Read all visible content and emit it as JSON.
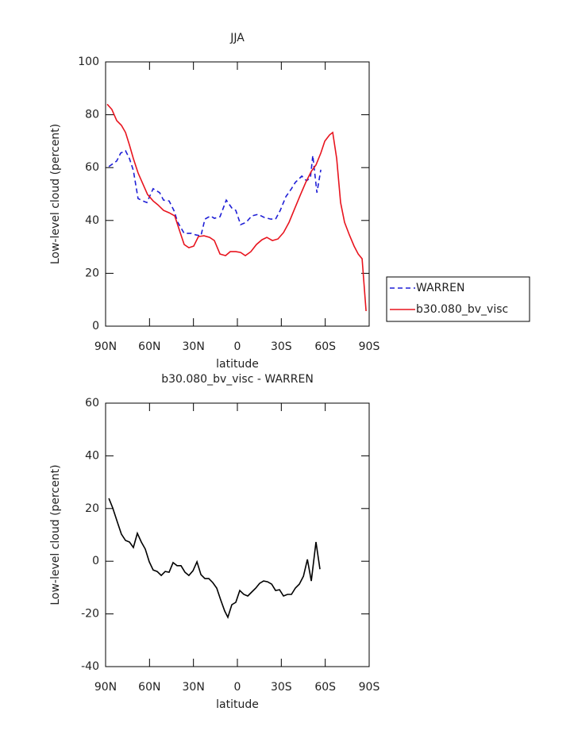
{
  "chart_data": [
    {
      "type": "line",
      "title": "JJA",
      "xlabel": "latitude",
      "ylabel": "Low-level cloud (percent)",
      "xlim": [
        90,
        -90
      ],
      "xticks": [
        {
          "value": 90,
          "label": "90N"
        },
        {
          "value": 60,
          "label": "60N"
        },
        {
          "value": 30,
          "label": "30N"
        },
        0,
        {
          "value": -30,
          "label": "30S"
        },
        {
          "value": -60,
          "label": "60S"
        },
        {
          "value": -90,
          "label": "90S"
        }
      ],
      "ylim": [
        0,
        100
      ],
      "yticks": [
        0,
        20,
        40,
        60,
        80,
        100
      ],
      "legend": "right",
      "series": [
        {
          "name": "WARREN",
          "color": "#1f1fd6",
          "linestyle": "dashed",
          "x": [
            87.8,
            82.4,
            79.7,
            76.4,
            73.7,
            71.0,
            67.8,
            64.5,
            61.8,
            57.5,
            53.1,
            50.4,
            46.6,
            43.4,
            40.7,
            36.3,
            31.4,
            28.2,
            24.9,
            22.2,
            18.4,
            15.7,
            11.9,
            7.6,
            3.8,
            1.1,
            -2.2,
            -6.0,
            -9.8,
            -14.1,
            -18.5,
            -22.8,
            -26.1,
            -29.3,
            -33.1,
            -36.9,
            -39.6,
            -44.0,
            -47.2,
            -49.9,
            -51.5,
            -54.3,
            -57.0
          ],
          "values": [
            60.4,
            62.5,
            65.5,
            66.4,
            63.4,
            58.9,
            48.3,
            47.4,
            46.8,
            52,
            50.5,
            47.7,
            47.4,
            43.8,
            39.3,
            35.1,
            35.1,
            34.5,
            34.2,
            40.5,
            41.7,
            40.8,
            41.4,
            47.7,
            44.7,
            43.8,
            38.4,
            39.3,
            41.7,
            42.3,
            41.1,
            40.5,
            40.5,
            43.8,
            49,
            52,
            54.4,
            56.8,
            55,
            56.2,
            64.6,
            50.5,
            59.2
          ]
        },
        {
          "name": "b30.080_bv_visc",
          "color": "#e8141e",
          "linestyle": "solid",
          "x": [
            88.9,
            85.7,
            82.4,
            79.2,
            76.4,
            73.7,
            71.0,
            67.8,
            64.5,
            61.3,
            57.5,
            54.2,
            50.4,
            46.6,
            42.8,
            39.6,
            36.3,
            33.1,
            29.8,
            26.6,
            22.8,
            19.0,
            15.7,
            11.9,
            8.1,
            4.9,
            1.1,
            -2.2,
            -5.4,
            -9.2,
            -13.0,
            -16.8,
            -20.1,
            -23.9,
            -27.7,
            -31.5,
            -35.3,
            -39.1,
            -42.9,
            -46.7,
            -50.5,
            -53.7,
            -57.0,
            -59.7,
            -63.0,
            -65.1,
            -67.8,
            -70.5,
            -73.2,
            -76.5,
            -79.7,
            -82.5,
            -85.2,
            -87.9
          ],
          "values": [
            84,
            82,
            77.8,
            76,
            73.3,
            68.5,
            63.4,
            58,
            53.8,
            49.8,
            47.4,
            45.9,
            43.8,
            42.9,
            41.7,
            36.3,
            30.9,
            29.7,
            30.3,
            33.9,
            34.2,
            33.6,
            32.4,
            27.3,
            26.7,
            28.2,
            28.2,
            27.9,
            26.7,
            28.2,
            30.9,
            32.7,
            33.6,
            32.4,
            33,
            35.4,
            39.3,
            44.4,
            49.5,
            54.4,
            58.6,
            61,
            65.5,
            70,
            72.4,
            73.3,
            63.4,
            46.8,
            39.3,
            34.5,
            30.3,
            27.3,
            25.5,
            5.7
          ]
        }
      ]
    },
    {
      "type": "line",
      "title": "b30.080_bv_visc - WARREN",
      "xlabel": "latitude",
      "ylabel": "Low-level cloud (percent)",
      "xlim": [
        90,
        -90
      ],
      "xticks": [
        {
          "value": 90,
          "label": "90N"
        },
        {
          "value": 60,
          "label": "60N"
        },
        {
          "value": 30,
          "label": "30N"
        },
        0,
        {
          "value": -30,
          "label": "30S"
        },
        {
          "value": -60,
          "label": "60S"
        },
        {
          "value": -90,
          "label": "90S"
        }
      ],
      "ylim": [
        -40,
        60
      ],
      "yticks": [
        -40,
        -20,
        0,
        20,
        40,
        60
      ],
      "series": [
        {
          "color": "#000000",
          "linestyle": "solid",
          "x": [
            87.8,
            85.1,
            81.9,
            79.2,
            76.4,
            73.7,
            71.0,
            68.3,
            65.6,
            62.9,
            60.2,
            57.5,
            54.8,
            52.0,
            49.3,
            46.6,
            43.9,
            41.2,
            38.5,
            35.8,
            33.1,
            30.3,
            27.6,
            24.9,
            22.2,
            19.5,
            16.8,
            14.1,
            11.4,
            8.7,
            6.5,
            3.8,
            1.1,
            -1.6,
            -4.4,
            -7.1,
            -9.8,
            -12.5,
            -15.2,
            -17.9,
            -20.6,
            -23.4,
            -26.1,
            -28.8,
            -31.5,
            -34.2,
            -36.9,
            -39.6,
            -42.3,
            -45.1,
            -47.8,
            -50.5,
            -53.7,
            -56.4
          ],
          "values": [
            23.9,
            20.2,
            14.8,
            10.3,
            7.9,
            7.3,
            5.2,
            10.6,
            7.3,
            4.6,
            -0.2,
            -3.3,
            -3.9,
            -5.4,
            -3.9,
            -4.2,
            -0.5,
            -1.7,
            -1.7,
            -4.2,
            -5.4,
            -3.6,
            -0.2,
            -5.1,
            -6.6,
            -6.6,
            -8.1,
            -10.2,
            -14.7,
            -18.9,
            -21.3,
            -16.5,
            -15.6,
            -11.1,
            -12.6,
            -13.2,
            -11.7,
            -10.2,
            -8.4,
            -7.5,
            -7.8,
            -8.7,
            -11.1,
            -10.8,
            -13.2,
            -12.6,
            -12.6,
            -10.2,
            -8.7,
            -5.7,
            0.7,
            -7.5,
            7.3,
            -3
          ]
        }
      ]
    }
  ]
}
